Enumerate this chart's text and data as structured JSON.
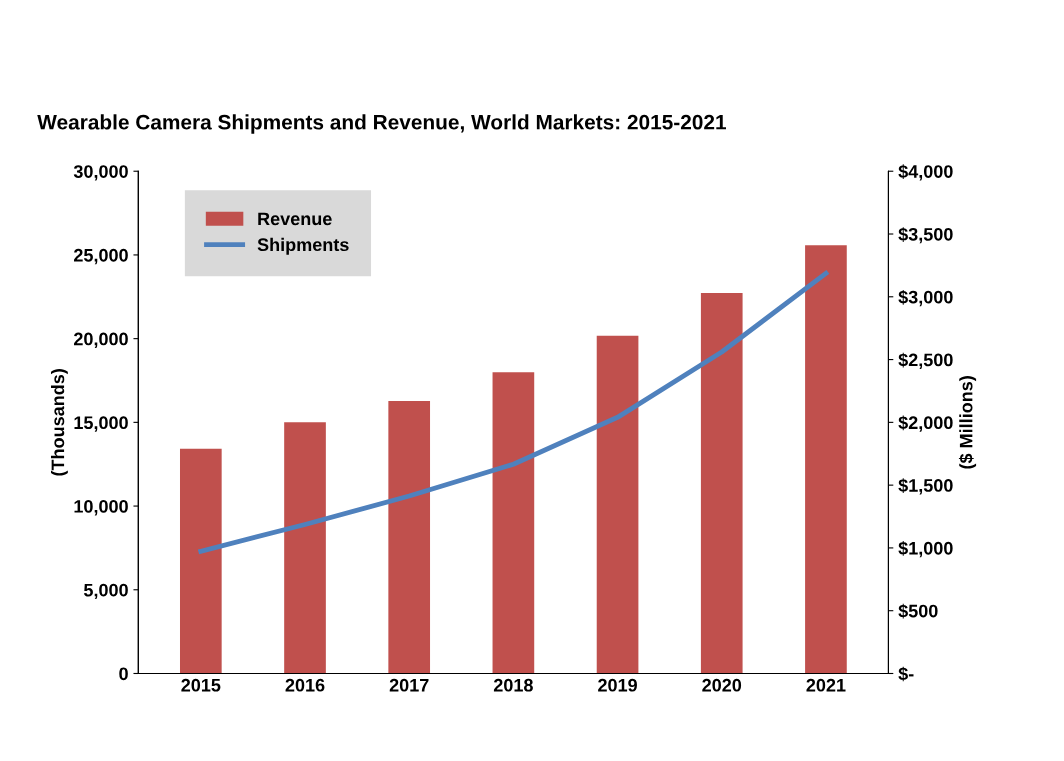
{
  "chart_data": {
    "type": "bar",
    "title": "Wearable Camera Shipments and Revenue, World Markets: 2015-2021",
    "categories": [
      "2015",
      "2016",
      "2017",
      "2018",
      "2019",
      "2020",
      "2021"
    ],
    "series": [
      {
        "name": "Revenue",
        "axis": "y2",
        "color": "#c0504d",
        "values": [
          1790,
          2000,
          2170,
          2400,
          2690,
          3030,
          3410
        ]
      },
      {
        "name": "Shipments",
        "type": "line",
        "axis": "y",
        "color": "#4f81bd",
        "values": [
          7300,
          8900,
          10600,
          12500,
          15300,
          19200,
          23900
        ]
      }
    ],
    "ylabel": "(Thousands)",
    "y2label": "($ Millions)",
    "ylim": [
      0,
      30000
    ],
    "yticks": [
      {
        "value": 0,
        "label": "0"
      },
      {
        "value": 5000,
        "label": "5,000"
      },
      {
        "value": 10000,
        "label": "10,000"
      },
      {
        "value": 15000,
        "label": "15,000"
      },
      {
        "value": 20000,
        "label": "20,000"
      },
      {
        "value": 25000,
        "label": "25,000"
      },
      {
        "value": 30000,
        "label": "30,000"
      }
    ],
    "y2lim": [
      0,
      4000
    ],
    "y2ticks": [
      {
        "value": 0,
        "label": "$-"
      },
      {
        "value": 500,
        "label": "$500"
      },
      {
        "value": 1000,
        "label": "$1,000"
      },
      {
        "value": 1500,
        "label": "$1,500"
      },
      {
        "value": 2000,
        "label": "$2,000"
      },
      {
        "value": 2500,
        "label": "$2,500"
      },
      {
        "value": 3000,
        "label": "$3,000"
      },
      {
        "value": 3500,
        "label": "$3,500"
      },
      {
        "value": 4000,
        "label": "$4,000"
      }
    ],
    "legend": "top left",
    "grid": false
  }
}
